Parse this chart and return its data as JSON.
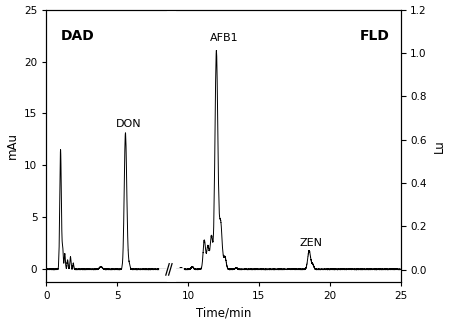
{
  "title_left": "DAD",
  "title_right": "FLD",
  "xlabel": "Time/min",
  "ylabel_left": "mAu",
  "ylabel_right": "Lu",
  "xlim": [
    0,
    25
  ],
  "ylim_left": [
    -1.2,
    25
  ],
  "ylim_right": [
    -0.057,
    1.2
  ],
  "xticks": [
    0,
    5,
    10,
    15,
    20,
    25
  ],
  "yticks_left": [
    0,
    5,
    10,
    15,
    20,
    25
  ],
  "yticks_right": [
    0.0,
    0.2,
    0.4,
    0.6,
    0.8,
    1.0,
    1.2
  ],
  "labels": {
    "DON": [
      4.9,
      13.5
    ],
    "AFB1": [
      11.55,
      21.8
    ],
    "ZEN": [
      17.9,
      2.1
    ]
  },
  "break_x1": 8.5,
  "break_x2": 9.1,
  "background_color": "#ffffff",
  "line_color": "#000000"
}
